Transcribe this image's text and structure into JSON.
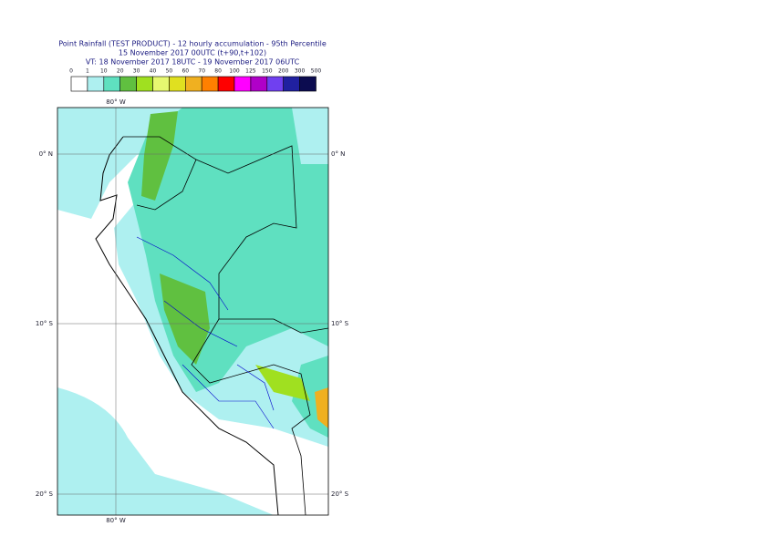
{
  "header": {
    "title": "Point Rainfall (TEST PRODUCT) - 12 hourly accumulation - 95th Percentile",
    "subtitle": "15 November 2017 00UTC (t+90,t+102)",
    "valid_time": "VT: 18 November 2017 18UTC - 19 November 2017 06UTC"
  },
  "legend": {
    "labels": [
      0,
      1,
      10,
      20,
      30,
      40,
      50,
      60,
      70,
      80,
      100,
      125,
      150,
      200,
      300,
      500
    ],
    "colors": [
      "#ffffff",
      "#aef0f0",
      "#5fe0c0",
      "#60c040",
      "#a0e020",
      "#e6f870",
      "#e0e020",
      "#f0b020",
      "#ff8000",
      "#ff0000",
      "#ff00ff",
      "#b000c8",
      "#7040f0",
      "#2020a0",
      "#0c0c50"
    ]
  },
  "map": {
    "lon_label": "80° W",
    "lat_labels": [
      "0° N",
      "10° S",
      "20° S"
    ]
  }
}
